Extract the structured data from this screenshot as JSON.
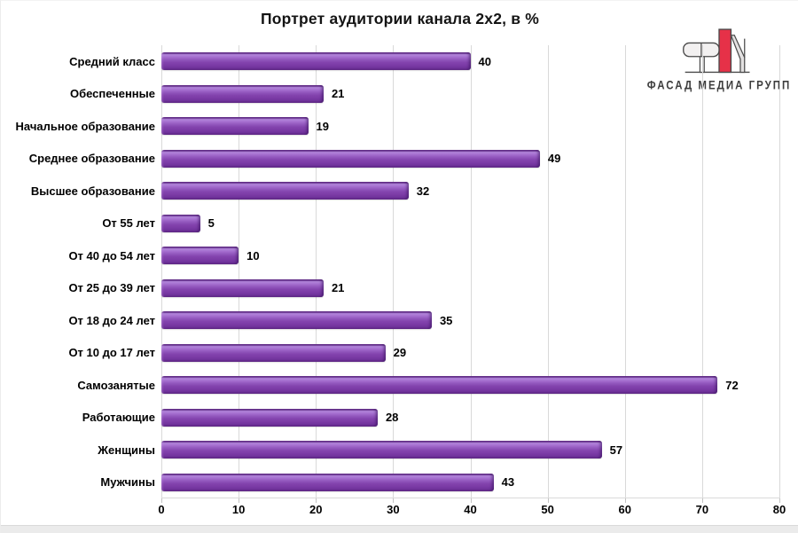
{
  "title": "Портрет аудитории канала 2x2, в %",
  "logo": {
    "text": "ФАСАД МЕДИА ГРУПП",
    "accent_red": "#e63148",
    "outline": "#4a4a4a",
    "fill_light": "#f2f0f0"
  },
  "chart_data": {
    "type": "bar",
    "orientation": "horizontal",
    "title": "Портрет аудитории канала 2x2, в %",
    "categories_top_to_bottom": [
      "Средний класс",
      "Обеспеченные",
      "Начальное образование",
      "Среднее образование",
      "Высшее образование",
      "От 55 лет",
      "От 40 до 54 лет",
      "От 25 до 39 лет",
      "От 18 до 24 лет",
      "От 10 до 17 лет",
      "Самозанятые",
      "Работающие",
      "Женщины",
      "Мужчины"
    ],
    "values": [
      40,
      21,
      19,
      49,
      32,
      5,
      10,
      21,
      35,
      29,
      72,
      28,
      57,
      43
    ],
    "xlabel": "",
    "ylabel": "",
    "xlim": [
      0,
      80
    ],
    "x_ticks": [
      0,
      10,
      20,
      30,
      40,
      50,
      60,
      70,
      80
    ],
    "grid": "vertical",
    "legend": "none",
    "data_labels": true,
    "bar_color": "#8444ae",
    "gridline_color": "#d9d9d9",
    "label_color": "#000000"
  }
}
